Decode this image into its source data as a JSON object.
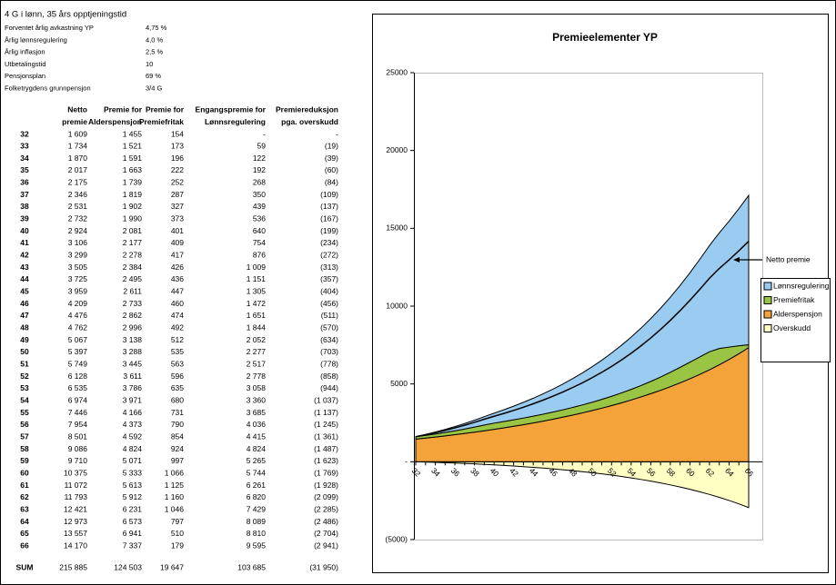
{
  "params": {
    "title": "4 G i lønn, 35 års opptjeningstid",
    "rows": [
      [
        "Forventet årlig avkastning YP",
        "4,75 %"
      ],
      [
        "Årlig lønnsregulering",
        "4,0 %"
      ],
      [
        "Årlig inflasjon",
        "2,5 %"
      ],
      [
        "Utbetalingstid",
        "10"
      ],
      [
        "Pensjonsplan",
        "69 %"
      ],
      [
        "Folketrygdens grunnpensjon",
        "3/4 G"
      ]
    ]
  },
  "table": {
    "headers": [
      [],
      [
        "Netto",
        "premie"
      ],
      [
        "Premie for",
        "Alderspensjon"
      ],
      [
        "Premie for",
        "Premiefritak"
      ],
      [
        "Engangspremie for",
        "Lønnsregulering"
      ],
      [
        "Premiereduksjon",
        "pga. overskudd"
      ]
    ],
    "rows": [
      [
        "32",
        "1 609",
        "1 455",
        "154",
        "-",
        "-"
      ],
      [
        "33",
        "1 734",
        "1 521",
        "173",
        "59",
        "(19)"
      ],
      [
        "34",
        "1 870",
        "1 591",
        "196",
        "122",
        "(39)"
      ],
      [
        "35",
        "2 017",
        "1 663",
        "222",
        "192",
        "(60)"
      ],
      [
        "36",
        "2 175",
        "1 739",
        "252",
        "268",
        "(84)"
      ],
      [
        "37",
        "2 346",
        "1 819",
        "287",
        "350",
        "(109)"
      ],
      [
        "38",
        "2 531",
        "1 902",
        "327",
        "439",
        "(137)"
      ],
      [
        "39",
        "2 732",
        "1 990",
        "373",
        "536",
        "(167)"
      ],
      [
        "40",
        "2 924",
        "2 081",
        "401",
        "640",
        "(199)"
      ],
      [
        "41",
        "3 106",
        "2 177",
        "409",
        "754",
        "(234)"
      ],
      [
        "42",
        "3 299",
        "2 278",
        "417",
        "876",
        "(272)"
      ],
      [
        "43",
        "3 505",
        "2 384",
        "426",
        "1 009",
        "(313)"
      ],
      [
        "44",
        "3 725",
        "2 495",
        "436",
        "1 151",
        "(357)"
      ],
      [
        "45",
        "3 959",
        "2 611",
        "447",
        "1 305",
        "(404)"
      ],
      [
        "46",
        "4 209",
        "2 733",
        "460",
        "1 472",
        "(456)"
      ],
      [
        "47",
        "4 476",
        "2 862",
        "474",
        "1 651",
        "(511)"
      ],
      [
        "48",
        "4 762",
        "2 996",
        "492",
        "1 844",
        "(570)"
      ],
      [
        "49",
        "5 067",
        "3 138",
        "512",
        "2 052",
        "(634)"
      ],
      [
        "50",
        "5 397",
        "3 288",
        "535",
        "2 277",
        "(703)"
      ],
      [
        "51",
        "5 749",
        "3 445",
        "563",
        "2 517",
        "(778)"
      ],
      [
        "52",
        "6 128",
        "3 611",
        "596",
        "2 778",
        "(858)"
      ],
      [
        "53",
        "6 535",
        "3 786",
        "635",
        "3 058",
        "(944)"
      ],
      [
        "54",
        "6 974",
        "3 971",
        "680",
        "3 360",
        "(1 037)"
      ],
      [
        "55",
        "7 446",
        "4 166",
        "731",
        "3 685",
        "(1 137)"
      ],
      [
        "56",
        "7 954",
        "4 373",
        "790",
        "4 036",
        "(1 245)"
      ],
      [
        "57",
        "8 501",
        "4 592",
        "854",
        "4 415",
        "(1 361)"
      ],
      [
        "58",
        "9 086",
        "4 824",
        "924",
        "4 824",
        "(1 487)"
      ],
      [
        "59",
        "9 710",
        "5 071",
        "997",
        "5 265",
        "(1 623)"
      ],
      [
        "60",
        "10 375",
        "5 333",
        "1 066",
        "5 744",
        "(1 769)"
      ],
      [
        "61",
        "11 072",
        "5 613",
        "1 125",
        "6 261",
        "(1 928)"
      ],
      [
        "62",
        "11 793",
        "5 912",
        "1 160",
        "6 820",
        "(2 099)"
      ],
      [
        "63",
        "12 421",
        "6 231",
        "1 046",
        "7 429",
        "(2 285)"
      ],
      [
        "64",
        "12 973",
        "6 573",
        "797",
        "8 089",
        "(2 486)"
      ],
      [
        "65",
        "13 557",
        "6 941",
        "510",
        "8 810",
        "(2 704)"
      ],
      [
        "66",
        "14 170",
        "7 337",
        "179",
        "9 595",
        "(2 941)"
      ]
    ],
    "sum": [
      "SUM",
      "215 885",
      "124 503",
      "19 647",
      "103 685",
      "(31 950)"
    ]
  },
  "chart_data": {
    "type": "stacked-area",
    "title": "Premieelementer YP",
    "categories": [
      "32",
      null,
      "34",
      null,
      "36",
      null,
      "38",
      null,
      "40",
      null,
      "42",
      null,
      "44",
      null,
      "46",
      null,
      "48",
      null,
      "50",
      null,
      "52",
      null,
      "54",
      null,
      "56",
      null,
      "58",
      null,
      "60",
      null,
      "62",
      null,
      "64",
      null,
      "66"
    ],
    "series": [
      {
        "name": "Lønnsregulering",
        "color": "#99ccf0",
        "values": [
          0,
          59,
          122,
          192,
          268,
          350,
          439,
          536,
          640,
          754,
          876,
          1009,
          1151,
          1305,
          1472,
          1651,
          1844,
          2052,
          2277,
          2517,
          2778,
          3058,
          3360,
          3685,
          4036,
          4415,
          4824,
          5265,
          5744,
          6261,
          6820,
          7429,
          8089,
          8810,
          9595
        ]
      },
      {
        "name": "Premiefritak",
        "color": "#99c444",
        "values": [
          154,
          173,
          196,
          222,
          252,
          287,
          327,
          373,
          401,
          409,
          417,
          426,
          436,
          447,
          460,
          474,
          492,
          512,
          535,
          563,
          596,
          635,
          680,
          731,
          790,
          854,
          924,
          997,
          1066,
          1125,
          1160,
          1046,
          797,
          510,
          179
        ]
      },
      {
        "name": "Alderspensjon",
        "color": "#f4a33a",
        "values": [
          1455,
          1521,
          1591,
          1663,
          1739,
          1819,
          1902,
          1990,
          2081,
          2177,
          2278,
          2384,
          2495,
          2611,
          2733,
          2862,
          2996,
          3138,
          3288,
          3445,
          3611,
          3786,
          3971,
          4166,
          4373,
          4592,
          4824,
          5071,
          5333,
          5613,
          5912,
          6231,
          6573,
          6941,
          7337
        ]
      },
      {
        "name": "Overskudd",
        "color": "#ffffc4",
        "values": [
          0,
          -19,
          -39,
          -60,
          -84,
          -109,
          -137,
          -167,
          -199,
          -234,
          -272,
          -313,
          -357,
          -404,
          -456,
          -511,
          -570,
          -634,
          -703,
          -778,
          -858,
          -944,
          -1037,
          -1137,
          -1245,
          -1361,
          -1487,
          -1623,
          -1769,
          -1928,
          -2099,
          -2285,
          -2486,
          -2704,
          -2941
        ]
      }
    ],
    "line": {
      "name": "Netto premie",
      "color": "#000000",
      "values": [
        1609,
        1734,
        1870,
        2017,
        2175,
        2346,
        2531,
        2732,
        2924,
        3106,
        3299,
        3505,
        3725,
        3959,
        4209,
        4476,
        4762,
        5067,
        5397,
        5749,
        6128,
        6535,
        6974,
        7446,
        7954,
        8501,
        9086,
        9710,
        10375,
        11072,
        11793,
        12421,
        12973,
        13557,
        14170
      ]
    },
    "ylim": [
      -5000,
      25000
    ],
    "yticks": [
      25000,
      20000,
      15000,
      10000,
      5000,
      {
        "value": 0,
        "label": "-"
      },
      {
        "value": -5000,
        "label": "(5000)"
      }
    ],
    "legend": "right"
  }
}
